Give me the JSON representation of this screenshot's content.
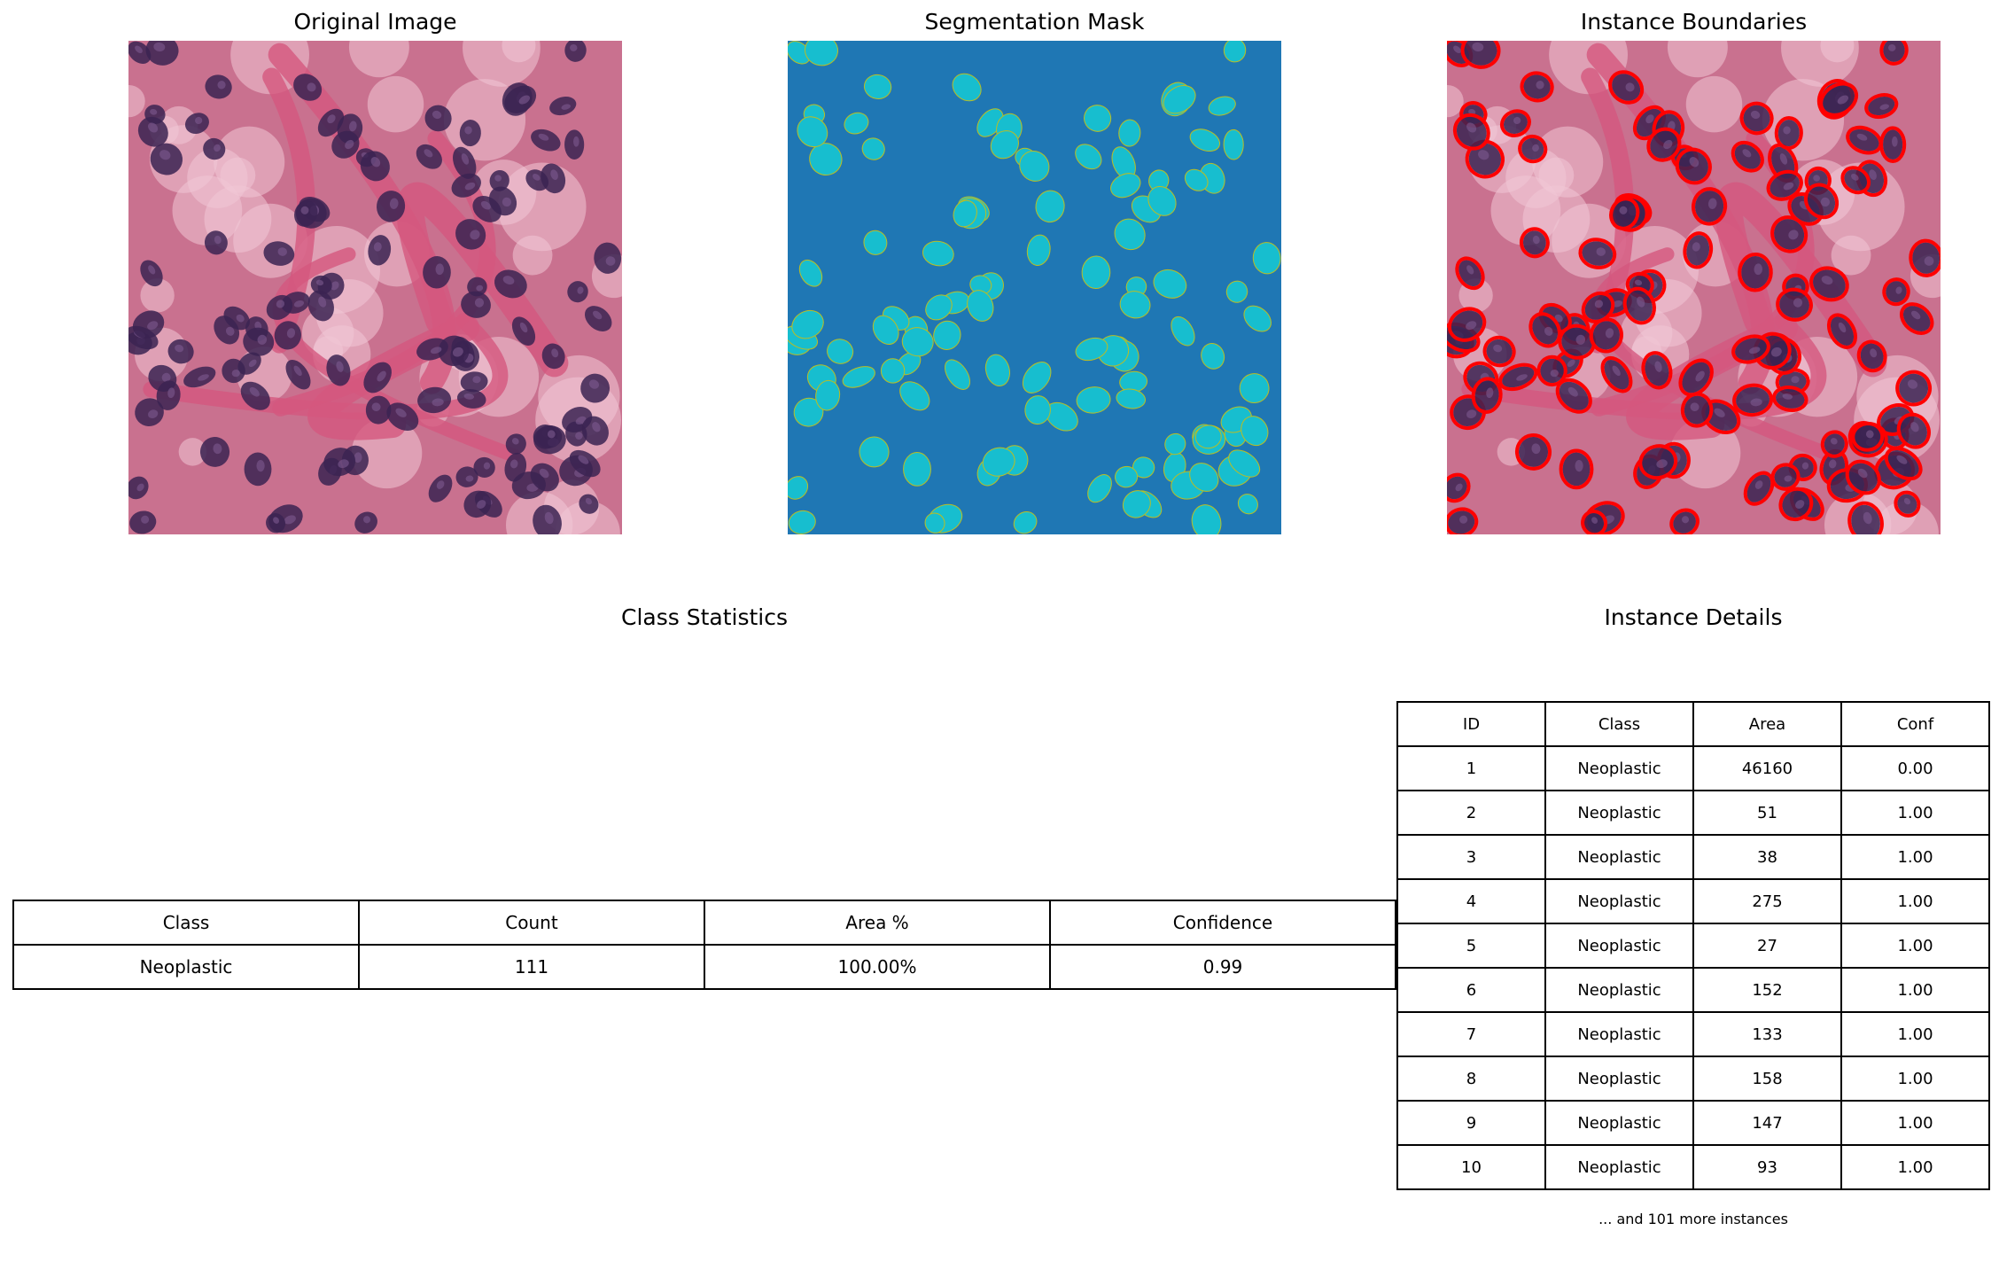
{
  "panels": {
    "original_title": "Original Image",
    "mask_title": "Segmentation Mask",
    "boundaries_title": "Instance Boundaries"
  },
  "colors": {
    "mask_background": "#1f77b4",
    "mask_nuclei": "#17becf",
    "boundary": "#ff0000",
    "tissue_stroma": "#d4587e",
    "tissue_light": "#f0c6d6",
    "nucleus": "#3b2352"
  },
  "class_statistics": {
    "title": "Class Statistics",
    "headers": [
      "Class",
      "Count",
      "Area %",
      "Confidence"
    ],
    "rows": [
      [
        "Neoplastic",
        "111",
        "100.00%",
        "0.99"
      ]
    ]
  },
  "instance_details": {
    "title": "Instance Details",
    "headers": [
      "ID",
      "Class",
      "Area",
      "Conf"
    ],
    "rows": [
      [
        "1",
        "Neoplastic",
        "46160",
        "0.00"
      ],
      [
        "2",
        "Neoplastic",
        "51",
        "1.00"
      ],
      [
        "3",
        "Neoplastic",
        "38",
        "1.00"
      ],
      [
        "4",
        "Neoplastic",
        "275",
        "1.00"
      ],
      [
        "5",
        "Neoplastic",
        "27",
        "1.00"
      ],
      [
        "6",
        "Neoplastic",
        "152",
        "1.00"
      ],
      [
        "7",
        "Neoplastic",
        "133",
        "1.00"
      ],
      [
        "8",
        "Neoplastic",
        "158",
        "1.00"
      ],
      [
        "9",
        "Neoplastic",
        "147",
        "1.00"
      ],
      [
        "10",
        "Neoplastic",
        "93",
        "1.00"
      ]
    ],
    "footer": "... and 101 more instances"
  },
  "chart_data": [
    {
      "type": "table",
      "title": "Class Statistics",
      "columns": [
        "Class",
        "Count",
        "Area %",
        "Confidence"
      ],
      "rows": [
        [
          "Neoplastic",
          111,
          "100.00%",
          0.99
        ]
      ]
    },
    {
      "type": "table",
      "title": "Instance Details",
      "columns": [
        "ID",
        "Class",
        "Area",
        "Conf"
      ],
      "rows": [
        [
          1,
          "Neoplastic",
          46160,
          0.0
        ],
        [
          2,
          "Neoplastic",
          51,
          1.0
        ],
        [
          3,
          "Neoplastic",
          38,
          1.0
        ],
        [
          4,
          "Neoplastic",
          275,
          1.0
        ],
        [
          5,
          "Neoplastic",
          27,
          1.0
        ],
        [
          6,
          "Neoplastic",
          152,
          1.0
        ],
        [
          7,
          "Neoplastic",
          133,
          1.0
        ],
        [
          8,
          "Neoplastic",
          158,
          1.0
        ],
        [
          9,
          "Neoplastic",
          147,
          1.0
        ],
        [
          10,
          "Neoplastic",
          93,
          1.0
        ]
      ],
      "footer": "... and 101 more instances"
    }
  ]
}
